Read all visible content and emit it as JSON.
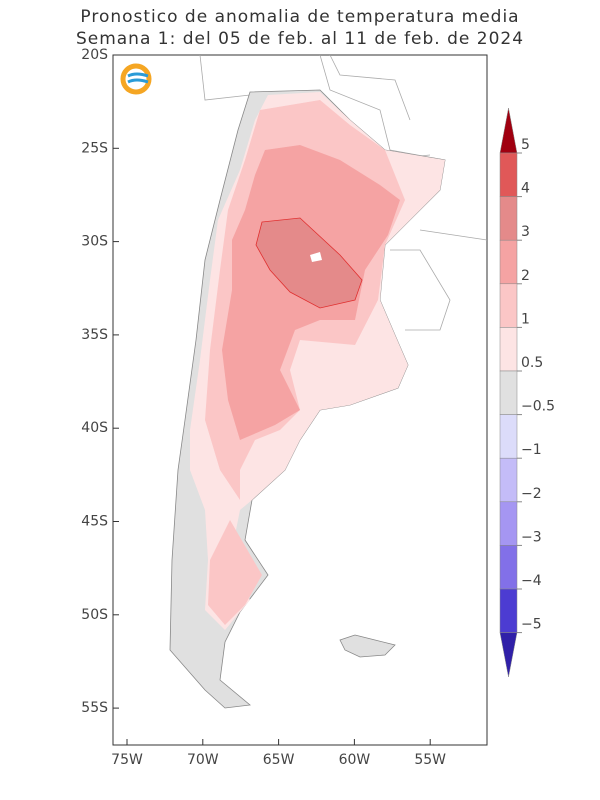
{
  "title": [
    "Pronostico de anomalia de temperatura media",
    "Semana 1: del 05 de feb. al 11 de feb. de 2024"
  ],
  "latitude_labels": [
    "20S",
    "25S",
    "30S",
    "35S",
    "40S",
    "45S",
    "50S",
    "55S"
  ],
  "longitude_labels": [
    "75W",
    "70W",
    "65W",
    "60W",
    "55W"
  ],
  "legend": {
    "labels": [
      "5",
      "4",
      "3",
      "2",
      "1",
      "0.5",
      "−0.5",
      "−1",
      "−2",
      "−3",
      "−4",
      "−5"
    ],
    "colors": [
      "#a00010",
      "#e05858",
      "#e48a8a",
      "#f5a3a3",
      "#fbc6c6",
      "#fde4e4",
      "#e0e0e0",
      "#dcdcfa",
      "#c4bcf8",
      "#a596f2",
      "#8270e8",
      "#4c3cd2",
      "#3020a8"
    ]
  }
}
